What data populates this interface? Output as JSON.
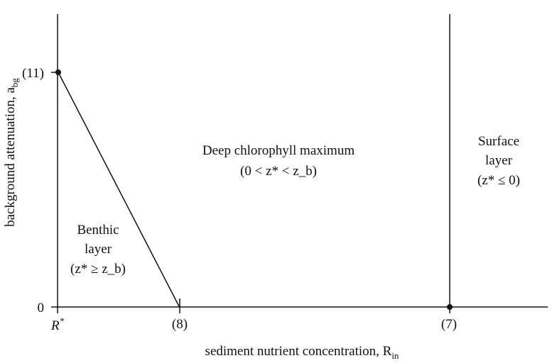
{
  "axes": {
    "xlabel": "sediment nutrient concentration, R",
    "xlabel_subscript": "in",
    "ylabel": "background attenuation, a",
    "ylabel_subscript": "bg"
  },
  "x_ticks": {
    "r_star": "R",
    "r_star_sup": "*",
    "eq8": "(8)",
    "eq7": "(7)"
  },
  "y_ticks": {
    "zero": "0",
    "eq11": "(11)"
  },
  "regions": {
    "benthic": {
      "line1": "Benthic",
      "line2": "layer",
      "condition": "(z* ≥ z_b)"
    },
    "deep": {
      "line1": "Deep chlorophyll maximum",
      "condition": "(0 < z* < z_b)"
    },
    "surface": {
      "line1": "Surface",
      "line2": "layer",
      "condition": "(z* ≤ 0)"
    }
  }
}
